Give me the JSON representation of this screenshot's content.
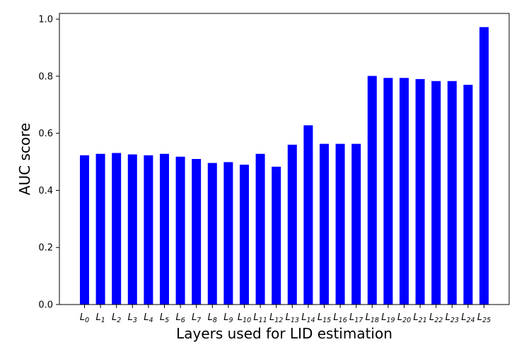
{
  "chart_data": {
    "type": "bar",
    "title": "",
    "xlabel": "Layers used for LID estimation",
    "ylabel": "AUC score",
    "ylim": [
      0.0,
      1.02
    ],
    "yticks": [
      "0.0",
      "0.2",
      "0.4",
      "0.6",
      "0.8",
      "1.0"
    ],
    "bar_color": "#0000ff",
    "grid": false,
    "legend": "none",
    "categories": [
      {
        "base": "L",
        "sub": "0"
      },
      {
        "base": "L",
        "sub": "1"
      },
      {
        "base": "L",
        "sub": "2"
      },
      {
        "base": "L",
        "sub": "3"
      },
      {
        "base": "L",
        "sub": "4"
      },
      {
        "base": "L",
        "sub": "5"
      },
      {
        "base": "L",
        "sub": "6"
      },
      {
        "base": "L",
        "sub": "7"
      },
      {
        "base": "L",
        "sub": "8"
      },
      {
        "base": "L",
        "sub": "9"
      },
      {
        "base": "L",
        "sub": "10"
      },
      {
        "base": "L",
        "sub": "11"
      },
      {
        "base": "L",
        "sub": "12"
      },
      {
        "base": "L",
        "sub": "13"
      },
      {
        "base": "L",
        "sub": "14"
      },
      {
        "base": "L",
        "sub": "15"
      },
      {
        "base": "L",
        "sub": "16"
      },
      {
        "base": "L",
        "sub": "17"
      },
      {
        "base": "L",
        "sub": "18"
      },
      {
        "base": "L",
        "sub": "19"
      },
      {
        "base": "L",
        "sub": "20"
      },
      {
        "base": "L",
        "sub": "21"
      },
      {
        "base": "L",
        "sub": "22"
      },
      {
        "base": "L",
        "sub": "23"
      },
      {
        "base": "L",
        "sub": "24"
      },
      {
        "base": "L",
        "sub": "25"
      }
    ],
    "values": [
      0.523,
      0.528,
      0.531,
      0.526,
      0.523,
      0.528,
      0.518,
      0.51,
      0.496,
      0.499,
      0.49,
      0.528,
      0.483,
      0.56,
      0.628,
      0.563,
      0.563,
      0.563,
      0.801,
      0.794,
      0.794,
      0.79,
      0.783,
      0.783,
      0.77,
      0.972
    ]
  }
}
